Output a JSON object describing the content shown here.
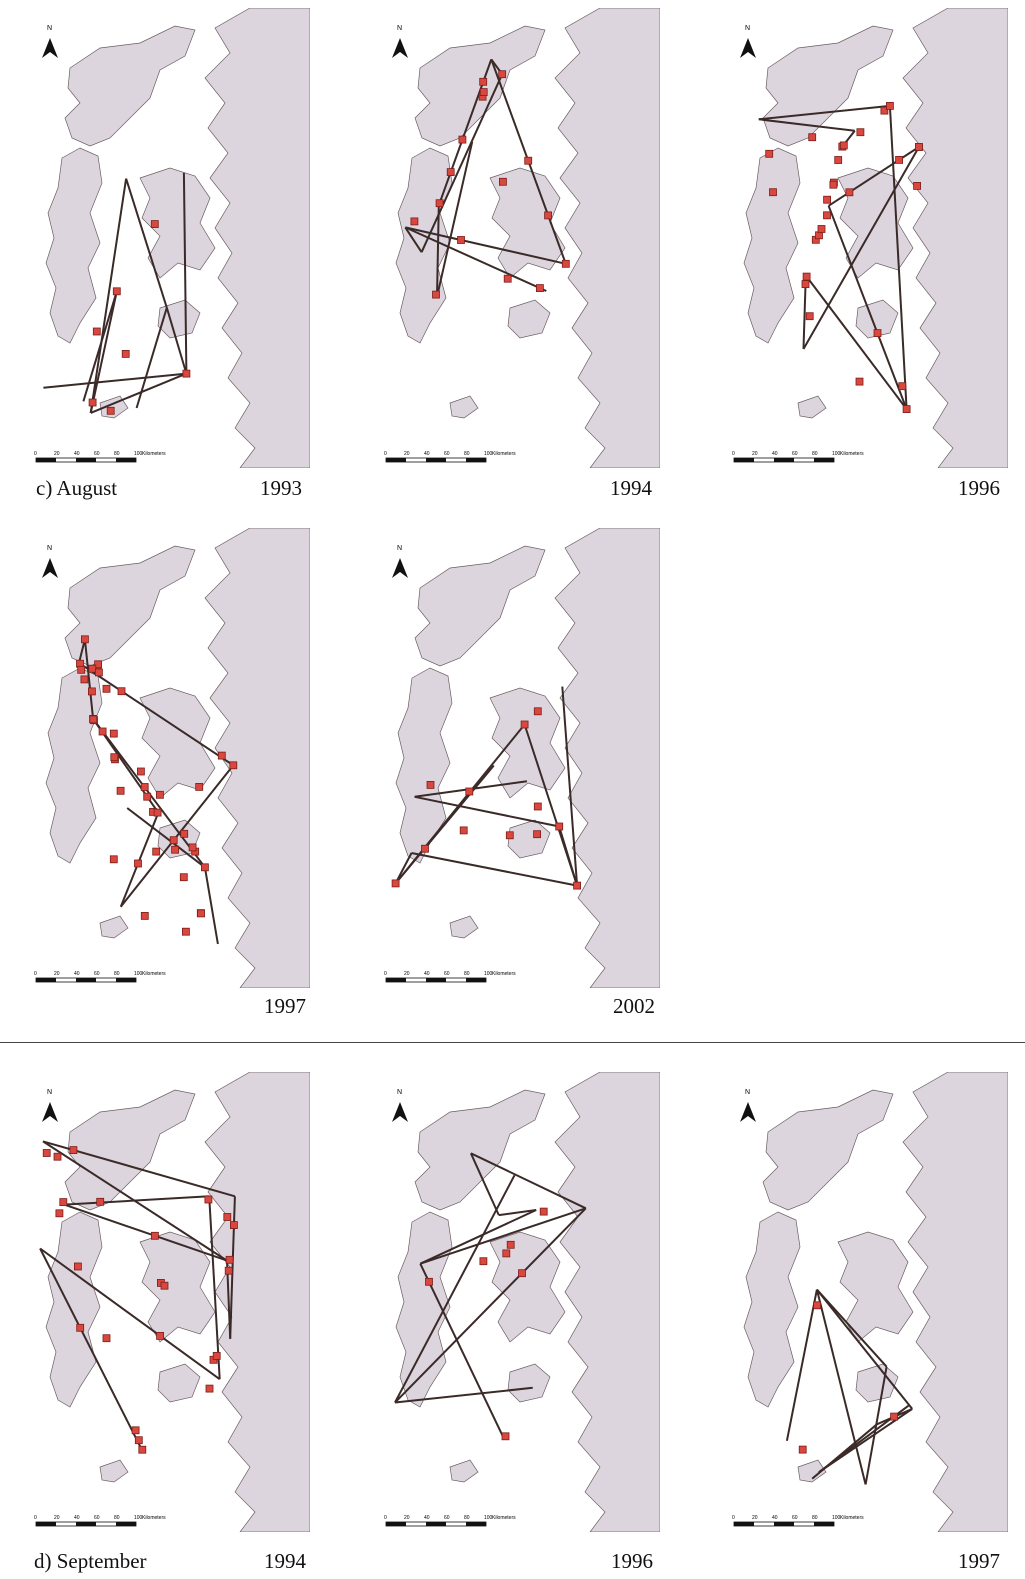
{
  "sections": [
    {
      "label": "c) August",
      "panels": [
        {
          "year": "1993",
          "points": 7,
          "seed": 3
        },
        {
          "year": "1994",
          "points": 16,
          "seed": 7
        },
        {
          "year": "1996",
          "points": 28,
          "seed": 11
        },
        {
          "year": "1997",
          "points": 42,
          "seed": 19
        },
        {
          "year": "2002",
          "points": 12,
          "seed": 23
        }
      ]
    },
    {
      "label": "d) September",
      "panels": [
        {
          "year": "1994",
          "points": 24,
          "seed": 29
        },
        {
          "year": "1996",
          "points": 7,
          "seed": 31
        },
        {
          "year": "1997",
          "points": 3,
          "seed": 37
        }
      ]
    }
  ],
  "map": {
    "north_label": "N",
    "scale_ticks": [
      "0",
      "20",
      "40",
      "60",
      "80",
      "100"
    ],
    "scale_unit": "Kilometers",
    "land_color": "#ddd5de",
    "track_color": "#3a2a28",
    "point_fill": "#d9473f",
    "point_stroke": "#7a1f1a"
  }
}
